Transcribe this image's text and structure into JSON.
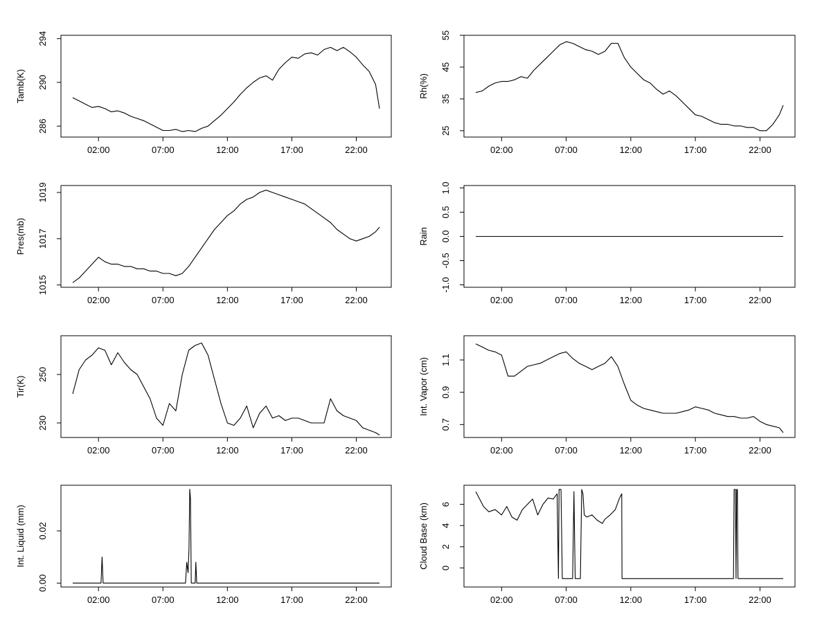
{
  "chart_data": [
    {
      "type": "line",
      "ylabel": "Tamb(K)",
      "x_ticks": [
        "02:00",
        "07:00",
        "12:00",
        "17:00",
        "22:00"
      ],
      "y_ticks": [
        "286",
        "290",
        "294"
      ],
      "ylim": [
        285,
        294.3
      ],
      "x": [
        0,
        0.5,
        1,
        1.5,
        2,
        2.5,
        3,
        3.5,
        4,
        4.5,
        5,
        5.5,
        6,
        6.5,
        7,
        7.5,
        8,
        8.5,
        9,
        9.5,
        10,
        10.5,
        11,
        11.5,
        12,
        12.5,
        13,
        13.5,
        14,
        14.5,
        15,
        15.5,
        16,
        16.5,
        17,
        17.5,
        18,
        18.5,
        19,
        19.5,
        20,
        20.5,
        21,
        21.5,
        22,
        22.5,
        23,
        23.5,
        23.8
      ],
      "series": [
        {
          "values": [
            288.6,
            288.3,
            288.0,
            287.7,
            287.8,
            287.6,
            287.3,
            287.4,
            287.2,
            286.9,
            286.7,
            286.5,
            286.2,
            285.9,
            285.6,
            285.6,
            285.7,
            285.5,
            285.6,
            285.5,
            285.8,
            286.0,
            286.5,
            287.0,
            287.6,
            288.2,
            288.9,
            289.5,
            290.0,
            290.4,
            290.6,
            290.2,
            291.2,
            291.8,
            292.3,
            292.2,
            292.6,
            292.7,
            292.5,
            293.0,
            293.2,
            292.9,
            293.2,
            292.8,
            292.3,
            291.6,
            291.0,
            289.8,
            287.6
          ]
        }
      ]
    },
    {
      "type": "line",
      "ylabel": "Rh(%)",
      "x_ticks": [
        "02:00",
        "07:00",
        "12:00",
        "17:00",
        "22:00"
      ],
      "y_ticks": [
        "25",
        "35",
        "45",
        "55"
      ],
      "ylim": [
        23,
        55
      ],
      "x": [
        0,
        0.5,
        1,
        1.5,
        2,
        2.5,
        3,
        3.5,
        4,
        4.5,
        5,
        5.5,
        6,
        6.5,
        7,
        7.5,
        8,
        8.5,
        9,
        9.5,
        10,
        10.5,
        11,
        11.5,
        12,
        12.5,
        13,
        13.5,
        14,
        14.5,
        15,
        15.5,
        16,
        16.5,
        17,
        17.5,
        18,
        18.5,
        19,
        19.5,
        20,
        20.5,
        21,
        21.5,
        22,
        22.5,
        23,
        23.5,
        23.8
      ],
      "series": [
        {
          "values": [
            37,
            37.5,
            39,
            40,
            40.5,
            40.5,
            41,
            42,
            41.5,
            44,
            46,
            48,
            50,
            52,
            53,
            52.5,
            51.5,
            50.5,
            50,
            49,
            50,
            52.5,
            52.5,
            48,
            45,
            43,
            41,
            40,
            38,
            36.5,
            37.5,
            36,
            34,
            32,
            30,
            29.5,
            28.5,
            27.5,
            27,
            27,
            26.5,
            26.5,
            26,
            26,
            25,
            25,
            27,
            30,
            33
          ]
        }
      ]
    },
    {
      "type": "line",
      "ylabel": "Pres(mb)",
      "x_ticks": [
        "02:00",
        "07:00",
        "12:00",
        "17:00",
        "22:00"
      ],
      "y_ticks": [
        "1015",
        "1017",
        "1019"
      ],
      "ylim": [
        1014.9,
        1019.3
      ],
      "x": [
        0,
        0.5,
        1,
        1.5,
        2,
        2.5,
        3,
        3.5,
        4,
        4.5,
        5,
        5.5,
        6,
        6.5,
        7,
        7.5,
        8,
        8.5,
        9,
        9.5,
        10,
        10.5,
        11,
        11.5,
        12,
        12.5,
        13,
        13.5,
        14,
        14.5,
        15,
        15.5,
        16,
        16.5,
        17,
        17.5,
        18,
        18.5,
        19,
        19.5,
        20,
        20.5,
        21,
        21.5,
        22,
        22.5,
        23,
        23.5,
        23.8
      ],
      "series": [
        {
          "values": [
            1015.1,
            1015.3,
            1015.6,
            1015.9,
            1016.2,
            1016.0,
            1015.9,
            1015.9,
            1015.8,
            1015.8,
            1015.7,
            1015.7,
            1015.6,
            1015.6,
            1015.5,
            1015.5,
            1015.4,
            1015.5,
            1015.8,
            1016.2,
            1016.6,
            1017.0,
            1017.4,
            1017.7,
            1018.0,
            1018.2,
            1018.5,
            1018.7,
            1018.8,
            1019.0,
            1019.1,
            1019.0,
            1018.9,
            1018.8,
            1018.7,
            1018.6,
            1018.5,
            1018.3,
            1018.1,
            1017.9,
            1017.7,
            1017.4,
            1017.2,
            1017.0,
            1016.9,
            1017.0,
            1017.1,
            1017.3,
            1017.5
          ]
        }
      ]
    },
    {
      "type": "line",
      "ylabel": "Rain",
      "x_ticks": [
        "02:00",
        "07:00",
        "12:00",
        "17:00",
        "22:00"
      ],
      "y_ticks": [
        "-1.0",
        "-0.5",
        "0.0",
        "0.5",
        "1.0"
      ],
      "ylim": [
        -1.05,
        1.05
      ],
      "x": [
        0,
        23.8
      ],
      "series": [
        {
          "values": [
            0,
            0
          ]
        }
      ]
    },
    {
      "type": "line",
      "ylabel": "Tir(K)",
      "x_ticks": [
        "02:00",
        "07:00",
        "12:00",
        "17:00",
        "22:00"
      ],
      "y_ticks": [
        "230",
        "250"
      ],
      "ylim": [
        224,
        266
      ],
      "x": [
        0,
        0.5,
        1,
        1.5,
        2,
        2.5,
        3,
        3.5,
        4,
        4.5,
        5,
        5.5,
        6,
        6.5,
        7,
        7.5,
        8,
        8.5,
        9,
        9.5,
        10,
        10.5,
        11,
        11.5,
        12,
        12.5,
        13,
        13.5,
        14,
        14.5,
        15,
        15.5,
        16,
        16.5,
        17,
        17.5,
        18,
        18.5,
        19,
        19.5,
        20,
        20.5,
        21,
        21.5,
        22,
        22.5,
        23,
        23.5,
        23.8
      ],
      "series": [
        {
          "values": [
            242,
            252,
            256,
            258,
            261,
            260,
            254,
            259,
            255,
            252,
            250,
            245,
            240,
            232,
            229,
            238,
            235,
            250,
            260,
            262,
            263,
            258,
            248,
            238,
            230,
            229,
            232,
            237,
            228,
            234,
            237,
            232,
            233,
            231,
            232,
            232,
            231,
            230,
            230,
            230,
            240,
            235,
            233,
            232,
            231,
            228,
            227,
            226,
            225
          ]
        }
      ]
    },
    {
      "type": "line",
      "ylabel": "Int. Vapor (cm)",
      "x_ticks": [
        "02:00",
        "07:00",
        "12:00",
        "17:00",
        "22:00"
      ],
      "y_ticks": [
        "0.7",
        "0.9",
        "1.1"
      ],
      "ylim": [
        0.62,
        1.25
      ],
      "x": [
        0,
        0.5,
        1,
        1.5,
        2,
        2.5,
        3,
        3.5,
        4,
        4.5,
        5,
        5.5,
        6,
        6.5,
        7,
        7.5,
        8,
        8.5,
        9,
        9.5,
        10,
        10.5,
        11,
        11.5,
        12,
        12.5,
        13,
        13.5,
        14,
        14.5,
        15,
        15.5,
        16,
        16.5,
        17,
        17.5,
        18,
        18.5,
        19,
        19.5,
        20,
        20.5,
        21,
        21.5,
        22,
        22.5,
        23,
        23.5,
        23.8
      ],
      "series": [
        {
          "values": [
            1.2,
            1.18,
            1.16,
            1.15,
            1.13,
            1.0,
            1.0,
            1.03,
            1.06,
            1.07,
            1.08,
            1.1,
            1.12,
            1.14,
            1.15,
            1.11,
            1.08,
            1.06,
            1.04,
            1.06,
            1.08,
            1.12,
            1.06,
            0.95,
            0.85,
            0.82,
            0.8,
            0.79,
            0.78,
            0.77,
            0.77,
            0.77,
            0.78,
            0.79,
            0.81,
            0.8,
            0.79,
            0.77,
            0.76,
            0.75,
            0.75,
            0.74,
            0.74,
            0.75,
            0.72,
            0.7,
            0.69,
            0.68,
            0.65
          ]
        }
      ]
    },
    {
      "type": "line",
      "ylabel": "Int. Liquid (mm)",
      "x_ticks": [
        "02:00",
        "07:00",
        "12:00",
        "17:00",
        "22:00"
      ],
      "y_ticks": [
        "0.00",
        "0.02"
      ],
      "ylim": [
        -0.0015,
        0.0375
      ],
      "x": [
        0,
        2.2,
        2.28,
        2.36,
        2.45,
        8.75,
        8.85,
        8.95,
        9.02,
        9.08,
        9.14,
        9.2,
        9.3,
        9.5,
        9.55,
        9.62,
        9.7,
        23.8
      ],
      "series": [
        {
          "values": [
            0,
            0,
            0.01,
            0,
            0,
            0,
            0.008,
            0.004,
            0.013,
            0.036,
            0.032,
            0,
            0,
            0,
            0.008,
            0,
            0,
            0
          ]
        }
      ]
    },
    {
      "type": "line",
      "ylabel": "Cloud Base (km)",
      "x_ticks": [
        "02:00",
        "07:00",
        "12:00",
        "17:00",
        "22:00"
      ],
      "y_ticks": [
        "0",
        "2",
        "4",
        "6"
      ],
      "ylim": [
        -1.8,
        7.8
      ],
      "x": [
        0,
        0.3,
        0.6,
        1,
        1.5,
        2,
        2.4,
        2.8,
        3.2,
        3.6,
        4,
        4.4,
        4.8,
        5.2,
        5.6,
        6,
        6.3,
        6.4,
        6.45,
        6.6,
        6.7,
        6.8,
        6.9,
        7,
        7.5,
        7.6,
        7.65,
        7.7,
        7.9,
        8.1,
        8.2,
        8.3,
        8.4,
        8.6,
        9,
        9.4,
        9.8,
        10,
        10.4,
        10.8,
        11.1,
        11.3,
        11.32,
        19.95,
        20,
        20.1,
        20.15,
        20.2,
        20.25,
        20.3,
        20.35,
        23.8
      ],
      "series": [
        {
          "values": [
            7.2,
            6.5,
            5.8,
            5.3,
            5.5,
            5.0,
            5.8,
            4.8,
            4.5,
            5.5,
            6.0,
            6.5,
            5.0,
            6.0,
            6.6,
            6.5,
            7.0,
            -1.0,
            7.4,
            7.4,
            -1.0,
            -1.0,
            -1.0,
            -1.0,
            -1.0,
            7.2,
            3.0,
            -1.0,
            -1.0,
            -1.0,
            7.4,
            7.0,
            5.0,
            4.8,
            5.0,
            4.5,
            4.2,
            4.6,
            5.0,
            5.5,
            6.5,
            7.0,
            -1.0,
            -1.0,
            7.4,
            7.4,
            -1.0,
            7.4,
            7.4,
            -1.0,
            -1.0,
            -1.0
          ]
        }
      ]
    }
  ]
}
